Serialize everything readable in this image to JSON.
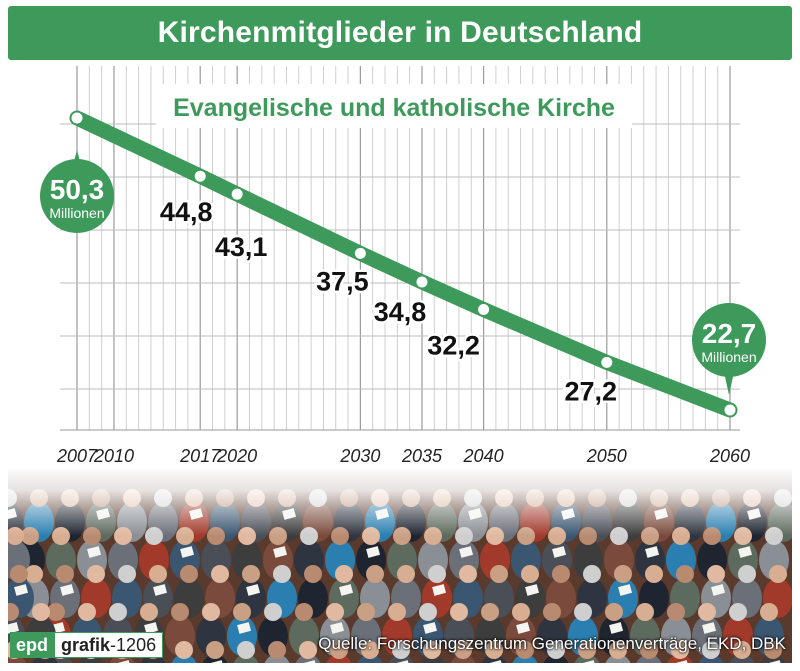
{
  "title": "Kirchenmitglieder in Deutschland",
  "subtitle": "Evangelische und katholische Kirche",
  "colors": {
    "accent": "#3d9a5b",
    "grid": "#c8c8c8",
    "text": "#111111"
  },
  "chart_data": {
    "type": "line",
    "title": "Kirchenmitglieder in Deutschland",
    "subtitle": "Evangelische und katholische Kirche",
    "ylabel": "Millionen",
    "xlim": [
      2007,
      2060
    ],
    "ylim": [
      20,
      52
    ],
    "x_ticks": [
      "2007",
      "2010",
      "2017",
      "2020",
      "2030",
      "2035",
      "2040",
      "2050",
      "2060"
    ],
    "series": [
      {
        "name": "Evangelische und katholische Kirche",
        "x": [
          2007,
          2017,
          2020,
          2030,
          2035,
          2040,
          2050,
          2060
        ],
        "values": [
          50.3,
          44.8,
          43.1,
          37.5,
          34.8,
          32.2,
          27.2,
          22.7
        ],
        "labels": [
          "50,3",
          "44,8",
          "43,1",
          "37,5",
          "34,8",
          "32,2",
          "27,2",
          "22,7"
        ]
      }
    ],
    "bubble_unit": "Millionen"
  },
  "footer": {
    "logo_epd": "epd",
    "logo_grafik": "grafik",
    "logo_number": "-1206",
    "source": "Quelle: Forschungszentrum Generationenverträge, EKD, DBK"
  }
}
